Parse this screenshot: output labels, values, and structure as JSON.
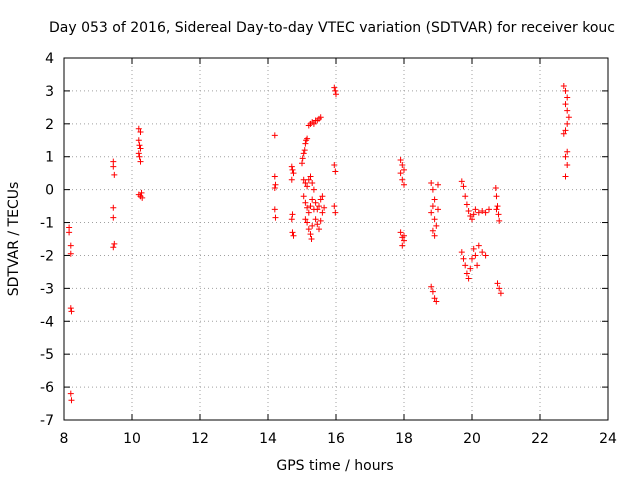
{
  "chart_data": {
    "type": "scatter",
    "title": "Day 053 of 2016, Sidereal Day-to-day VTEC variation (SDTVAR) for receiver kouc",
    "xlabel": "GPS time / hours",
    "ylabel": "SDTVAR / TECUs",
    "xlim": [
      8,
      24
    ],
    "ylim": [
      -7,
      4
    ],
    "xticks": [
      "8",
      "10",
      "12",
      "14",
      "16",
      "18",
      "20",
      "22",
      "24"
    ],
    "yticks": [
      "4",
      "3",
      "2",
      "1",
      "0",
      "-1",
      "-2",
      "-3",
      "-4",
      "-5",
      "-6",
      "-7"
    ],
    "grid": true,
    "marker": "+",
    "series": [
      {
        "name": "SDTVAR",
        "color": "#ff0000",
        "points": [
          [
            8.15,
            -1.15
          ],
          [
            8.15,
            -1.3
          ],
          [
            8.2,
            -1.7
          ],
          [
            8.2,
            -1.95
          ],
          [
            8.2,
            -3.6
          ],
          [
            8.22,
            -3.7
          ],
          [
            8.2,
            -6.2
          ],
          [
            8.22,
            -6.4
          ],
          [
            9.45,
            0.85
          ],
          [
            9.45,
            0.7
          ],
          [
            9.48,
            0.45
          ],
          [
            9.45,
            -0.55
          ],
          [
            9.45,
            -0.85
          ],
          [
            9.48,
            -1.65
          ],
          [
            9.45,
            -1.75
          ],
          [
            10.2,
            1.85
          ],
          [
            10.25,
            1.75
          ],
          [
            10.2,
            1.5
          ],
          [
            10.22,
            1.35
          ],
          [
            10.25,
            1.25
          ],
          [
            10.2,
            1.1
          ],
          [
            10.22,
            1.0
          ],
          [
            10.25,
            0.85
          ],
          [
            10.2,
            -0.15
          ],
          [
            10.25,
            -0.2
          ],
          [
            10.3,
            -0.25
          ],
          [
            10.28,
            -0.1
          ],
          [
            14.2,
            1.65
          ],
          [
            14.2,
            0.4
          ],
          [
            14.22,
            0.15
          ],
          [
            14.2,
            0.05
          ],
          [
            14.2,
            -0.6
          ],
          [
            14.22,
            -0.85
          ],
          [
            14.7,
            0.7
          ],
          [
            14.72,
            0.6
          ],
          [
            14.75,
            0.5
          ],
          [
            14.7,
            0.3
          ],
          [
            14.72,
            -0.75
          ],
          [
            14.7,
            -0.9
          ],
          [
            14.72,
            -1.3
          ],
          [
            14.75,
            -1.4
          ],
          [
            15.0,
            0.8
          ],
          [
            15.02,
            0.95
          ],
          [
            15.05,
            1.1
          ],
          [
            15.08,
            1.2
          ],
          [
            15.1,
            1.4
          ],
          [
            15.12,
            1.5
          ],
          [
            15.15,
            1.55
          ],
          [
            15.2,
            1.95
          ],
          [
            15.25,
            2.0
          ],
          [
            15.3,
            2.05
          ],
          [
            15.35,
            2.0
          ],
          [
            15.4,
            2.1
          ],
          [
            15.45,
            2.1
          ],
          [
            15.5,
            2.15
          ],
          [
            15.55,
            2.2
          ],
          [
            15.05,
            0.3
          ],
          [
            15.1,
            0.2
          ],
          [
            15.15,
            0.1
          ],
          [
            15.2,
            0.3
          ],
          [
            15.25,
            0.4
          ],
          [
            15.3,
            0.2
          ],
          [
            15.35,
            0.0
          ],
          [
            15.05,
            -0.2
          ],
          [
            15.1,
            -0.4
          ],
          [
            15.15,
            -0.55
          ],
          [
            15.2,
            -0.7
          ],
          [
            15.25,
            -0.5
          ],
          [
            15.3,
            -0.3
          ],
          [
            15.35,
            -0.6
          ],
          [
            15.1,
            -0.9
          ],
          [
            15.15,
            -1.0
          ],
          [
            15.2,
            -1.2
          ],
          [
            15.25,
            -1.35
          ],
          [
            15.28,
            -1.5
          ],
          [
            15.3,
            -1.1
          ],
          [
            15.4,
            -0.4
          ],
          [
            15.45,
            -0.6
          ],
          [
            15.5,
            -0.5
          ],
          [
            15.55,
            -0.3
          ],
          [
            15.6,
            -0.2
          ],
          [
            15.65,
            -0.55
          ],
          [
            15.6,
            -0.7
          ],
          [
            15.4,
            -0.9
          ],
          [
            15.45,
            -1.05
          ],
          [
            15.5,
            -1.2
          ],
          [
            15.55,
            -0.95
          ],
          [
            15.95,
            3.1
          ],
          [
            15.98,
            3.0
          ],
          [
            16.0,
            2.9
          ],
          [
            15.95,
            0.75
          ],
          [
            15.98,
            0.55
          ],
          [
            15.95,
            -0.5
          ],
          [
            15.98,
            -0.7
          ],
          [
            17.9,
            0.9
          ],
          [
            17.95,
            0.75
          ],
          [
            18.0,
            0.6
          ],
          [
            17.9,
            0.5
          ],
          [
            17.95,
            0.3
          ],
          [
            18.0,
            0.15
          ],
          [
            17.9,
            -1.3
          ],
          [
            17.95,
            -1.45
          ],
          [
            18.0,
            -1.55
          ],
          [
            17.95,
            -1.7
          ],
          [
            18.0,
            -1.4
          ],
          [
            18.8,
            -2.95
          ],
          [
            18.85,
            -3.1
          ],
          [
            18.9,
            -3.3
          ],
          [
            18.95,
            -3.4
          ],
          [
            18.8,
            0.2
          ],
          [
            18.85,
            0.0
          ],
          [
            18.9,
            -0.3
          ],
          [
            18.85,
            -0.5
          ],
          [
            18.8,
            -0.7
          ],
          [
            18.9,
            -0.9
          ],
          [
            18.95,
            -1.1
          ],
          [
            18.85,
            -1.25
          ],
          [
            18.9,
            -1.4
          ],
          [
            19.0,
            0.15
          ],
          [
            19.0,
            -0.6
          ],
          [
            19.7,
            0.25
          ],
          [
            19.75,
            0.1
          ],
          [
            19.8,
            -0.2
          ],
          [
            19.85,
            -0.45
          ],
          [
            19.9,
            -0.65
          ],
          [
            19.95,
            -0.8
          ],
          [
            20.0,
            -0.9
          ],
          [
            20.05,
            -0.75
          ],
          [
            20.1,
            -0.6
          ],
          [
            20.2,
            -0.7
          ],
          [
            20.3,
            -0.65
          ],
          [
            20.4,
            -0.7
          ],
          [
            20.5,
            -0.6
          ],
          [
            19.7,
            -1.9
          ],
          [
            19.75,
            -2.1
          ],
          [
            19.8,
            -2.3
          ],
          [
            19.85,
            -2.55
          ],
          [
            19.9,
            -2.7
          ],
          [
            19.95,
            -2.4
          ],
          [
            20.0,
            -2.1
          ],
          [
            20.05,
            -1.8
          ],
          [
            20.1,
            -2.0
          ],
          [
            20.15,
            -2.3
          ],
          [
            20.2,
            -1.7
          ],
          [
            20.3,
            -1.9
          ],
          [
            20.4,
            -2.0
          ],
          [
            20.7,
            0.05
          ],
          [
            20.72,
            -0.2
          ],
          [
            20.75,
            -0.5
          ],
          [
            20.78,
            -0.75
          ],
          [
            20.8,
            -0.95
          ],
          [
            20.72,
            -0.6
          ],
          [
            20.75,
            -2.85
          ],
          [
            20.8,
            -3.0
          ],
          [
            20.85,
            -3.15
          ],
          [
            22.7,
            3.15
          ],
          [
            22.75,
            3.0
          ],
          [
            22.8,
            2.8
          ],
          [
            22.75,
            2.6
          ],
          [
            22.8,
            2.4
          ],
          [
            22.85,
            2.2
          ],
          [
            22.8,
            2.0
          ],
          [
            22.75,
            1.8
          ],
          [
            22.7,
            1.7
          ],
          [
            22.8,
            1.15
          ],
          [
            22.75,
            1.0
          ],
          [
            22.8,
            0.75
          ],
          [
            22.75,
            0.4
          ]
        ]
      }
    ]
  }
}
